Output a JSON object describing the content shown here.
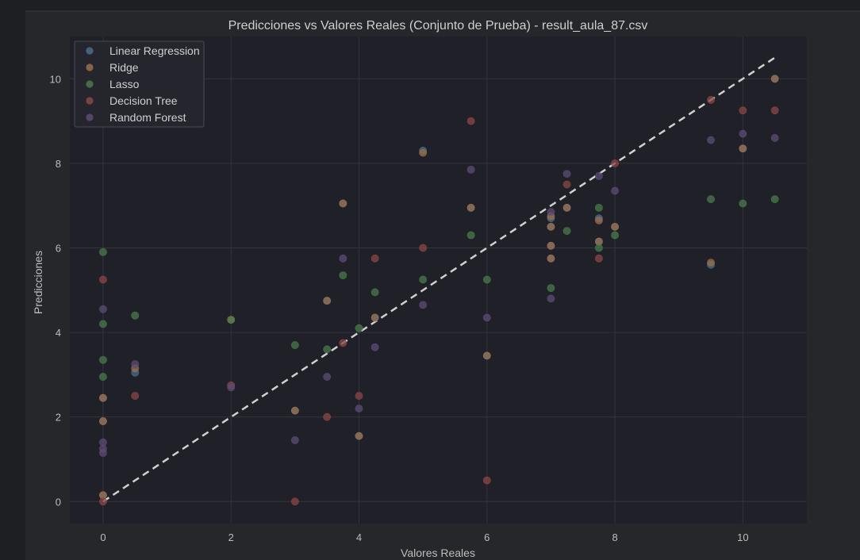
{
  "chart_data": {
    "type": "scatter",
    "title": "Predicciones vs Valores Reales (Conjunto de Prueba) - result_aula_87.csv",
    "xlabel": "Valores Reales",
    "ylabel": "Predicciones",
    "xlim": [
      -0.52,
      11.0
    ],
    "ylim": [
      -0.52,
      11.0
    ],
    "xticks": [
      0,
      2,
      4,
      6,
      8,
      10
    ],
    "yticks": [
      0,
      2,
      4,
      6,
      8,
      10
    ],
    "grid": true,
    "legend_position": "top-left",
    "reference_line": {
      "style": "dashed",
      "color": "#d0d0d0",
      "from": [
        0,
        0
      ],
      "to": [
        10.5,
        10.5
      ]
    },
    "series": [
      {
        "name": "Linear Regression",
        "color": "#4e6c88",
        "points": [
          [
            0,
            0.15
          ],
          [
            0,
            1.9
          ],
          [
            0,
            2.45
          ],
          [
            0.5,
            3.05
          ],
          [
            2,
            4.3
          ],
          [
            3,
            2.15
          ],
          [
            3.5,
            4.75
          ],
          [
            4,
            1.55
          ],
          [
            3.75,
            7.05
          ],
          [
            4.25,
            4.35
          ],
          [
            5,
            8.3
          ],
          [
            5.75,
            6.95
          ],
          [
            6,
            3.45
          ],
          [
            7,
            5.75
          ],
          [
            7,
            6.05
          ],
          [
            7,
            6.5
          ],
          [
            7,
            6.7
          ],
          [
            7.25,
            6.95
          ],
          [
            7.75,
            6.15
          ],
          [
            7.75,
            6.7
          ],
          [
            8,
            6.5
          ],
          [
            9.5,
            5.6
          ],
          [
            10,
            8.35
          ],
          [
            10.5,
            10.0
          ]
        ]
      },
      {
        "name": "Ridge",
        "color": "#9a6e4d",
        "points": [
          [
            0,
            0.15
          ],
          [
            0,
            1.9
          ],
          [
            0,
            2.45
          ],
          [
            0.5,
            3.15
          ],
          [
            2,
            4.3
          ],
          [
            3,
            2.15
          ],
          [
            3.5,
            4.75
          ],
          [
            4,
            1.55
          ],
          [
            3.75,
            7.05
          ],
          [
            4.25,
            4.35
          ],
          [
            5,
            8.25
          ],
          [
            5.75,
            6.95
          ],
          [
            6,
            3.45
          ],
          [
            7,
            5.75
          ],
          [
            7,
            6.05
          ],
          [
            7,
            6.5
          ],
          [
            7,
            6.75
          ],
          [
            7.25,
            6.95
          ],
          [
            7.75,
            6.15
          ],
          [
            7.75,
            6.65
          ],
          [
            8,
            6.5
          ],
          [
            9.5,
            5.65
          ],
          [
            10,
            8.35
          ],
          [
            10.5,
            10.0
          ]
        ]
      },
      {
        "name": "Lasso",
        "color": "#4a7a4a",
        "points": [
          [
            0,
            5.9
          ],
          [
            0,
            4.2
          ],
          [
            0,
            3.35
          ],
          [
            0,
            2.95
          ],
          [
            0.5,
            4.4
          ],
          [
            2,
            4.3
          ],
          [
            3,
            3.7
          ],
          [
            3.5,
            3.6
          ],
          [
            3.75,
            5.35
          ],
          [
            4,
            4.1
          ],
          [
            4.25,
            4.95
          ],
          [
            5,
            5.25
          ],
          [
            5.75,
            6.3
          ],
          [
            6,
            5.25
          ],
          [
            7,
            5.05
          ],
          [
            7.25,
            6.4
          ],
          [
            7.75,
            6.95
          ],
          [
            7.75,
            6.0
          ],
          [
            8,
            6.3
          ],
          [
            9.5,
            7.15
          ],
          [
            10,
            7.05
          ],
          [
            10.5,
            7.15
          ]
        ]
      },
      {
        "name": "Decision Tree",
        "color": "#8c4646",
        "points": [
          [
            0,
            5.25
          ],
          [
            0,
            0.0
          ],
          [
            0.5,
            2.5
          ],
          [
            2,
            2.75
          ],
          [
            3,
            0.0
          ],
          [
            3.5,
            2.0
          ],
          [
            3.75,
            3.75
          ],
          [
            4,
            2.5
          ],
          [
            4.25,
            5.75
          ],
          [
            5,
            6.0
          ],
          [
            5.75,
            9.0
          ],
          [
            6,
            0.5
          ],
          [
            7.25,
            7.5
          ],
          [
            7.75,
            5.75
          ],
          [
            8,
            8.0
          ],
          [
            9.5,
            9.5
          ],
          [
            10,
            9.25
          ],
          [
            10.5,
            9.25
          ]
        ]
      },
      {
        "name": "Random Forest",
        "color": "#5e4b75",
        "points": [
          [
            0,
            4.55
          ],
          [
            0,
            1.4
          ],
          [
            0,
            1.25
          ],
          [
            0,
            1.15
          ],
          [
            0.5,
            3.25
          ],
          [
            2,
            2.7
          ],
          [
            3,
            1.45
          ],
          [
            3.5,
            2.95
          ],
          [
            3.75,
            5.75
          ],
          [
            4,
            2.2
          ],
          [
            4.25,
            3.65
          ],
          [
            5,
            4.65
          ],
          [
            5.75,
            7.85
          ],
          [
            6,
            4.35
          ],
          [
            7,
            4.8
          ],
          [
            7,
            6.85
          ],
          [
            7.25,
            7.75
          ],
          [
            7.75,
            7.7
          ],
          [
            8,
            7.35
          ],
          [
            9.5,
            8.55
          ],
          [
            10,
            8.7
          ],
          [
            10.5,
            8.6
          ]
        ]
      }
    ]
  }
}
